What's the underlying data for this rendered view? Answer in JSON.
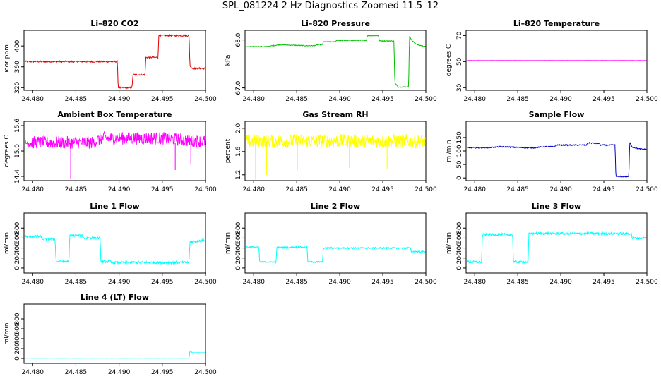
{
  "title": "SPL_081224  2 Hz Diagnostics Zoomed 11.5–12",
  "colors": {
    "red": "#e00000",
    "green": "#00c000",
    "magenta": "#ff00ff",
    "yellow": "#ffff00",
    "blue": "#0000cc",
    "cyan": "#00ffff"
  },
  "chart_data": [
    {
      "type": "line",
      "title": "Li–820 CO2",
      "ylabel": "Licor ppm",
      "color": "red",
      "xlim": [
        24.479,
        24.5
      ],
      "xticks": [
        "24.480",
        "24.485",
        "24.490",
        "24.495",
        "24.500"
      ],
      "ylim": [
        315,
        430
      ],
      "yticks": [
        320,
        360,
        400
      ],
      "noise": 1.5,
      "series": {
        "x": [
          24.4791,
          24.4898,
          24.4899,
          24.4915,
          24.4916,
          24.493,
          24.4931,
          24.4945,
          24.4946,
          24.4981,
          24.4982,
          24.4985,
          24.49996
        ],
        "y": [
          370,
          370,
          320,
          320,
          345,
          345,
          378,
          378,
          420,
          420,
          362,
          357,
          357
        ]
      }
    },
    {
      "type": "line",
      "title": "Li–820 Pressure",
      "ylabel": "kPa",
      "color": "green",
      "xlim": [
        24.479,
        24.5
      ],
      "xticks": [
        "24.480",
        "24.485",
        "24.490",
        "24.495",
        "24.500"
      ],
      "ylim": [
        66.95,
        68.2
      ],
      "yticks": [
        "67.0",
        "68.0"
      ],
      "noise": 0.008,
      "series": {
        "x": [
          24.4791,
          24.4815,
          24.483,
          24.486,
          24.487,
          24.4875,
          24.488,
          24.4881,
          24.4895,
          24.4896,
          24.4931,
          24.4932,
          24.4945,
          24.4946,
          24.4963,
          24.4964,
          24.4968,
          24.4969,
          24.498,
          24.4981,
          24.4984,
          24.499,
          24.49996
        ],
        "y": [
          67.86,
          67.86,
          67.9,
          67.88,
          67.88,
          67.9,
          67.9,
          67.96,
          67.96,
          67.99,
          67.99,
          68.09,
          68.09,
          67.98,
          67.98,
          67.1,
          67.02,
          67.02,
          67.02,
          68.08,
          67.98,
          67.9,
          67.86
        ]
      }
    },
    {
      "type": "line",
      "title": "Li–820 Temperature",
      "ylabel": "degrees C",
      "color": "magenta",
      "xlim": [
        24.479,
        24.5
      ],
      "xticks": [
        "24.480",
        "24.485",
        "24.490",
        "24.495",
        "24.500"
      ],
      "ylim": [
        28,
        74
      ],
      "yticks": [
        30,
        50,
        70
      ],
      "noise": 0.05,
      "series": {
        "x": [
          24.4791,
          24.49996
        ],
        "y": [
          50.8,
          50.8
        ]
      }
    },
    {
      "type": "line",
      "title": "Ambient Box Temperature",
      "ylabel": "degrees C",
      "color": "magenta",
      "xlim": [
        24.479,
        24.5
      ],
      "xticks": [
        "24.480",
        "24.485",
        "24.490",
        "24.495",
        "24.500"
      ],
      "ylim": [
        14.3,
        15.7
      ],
      "yticks": [
        "14.4",
        "15.0",
        "15.6"
      ],
      "noise": 0.15,
      "spikes": [
        [
          24.4844,
          14.35
        ],
        [
          24.4965,
          14.55
        ],
        [
          24.4983,
          14.7
        ]
      ],
      "series": {
        "x": [
          24.4791,
          24.487,
          24.488,
          24.495,
          24.49996
        ],
        "y": [
          15.2,
          15.2,
          15.3,
          15.3,
          15.22
        ]
      }
    },
    {
      "type": "line",
      "title": "Gas Stream RH",
      "ylabel": "percent",
      "color": "yellow",
      "xlim": [
        24.479,
        24.5
      ],
      "xticks": [
        "24.480",
        "24.485",
        "24.490",
        "24.495",
        "24.500"
      ],
      "ylim": [
        1.1,
        2.12
      ],
      "yticks": [
        "1.2",
        "1.6",
        "2.0"
      ],
      "noise": 0.12,
      "spikes": [
        [
          24.4802,
          1.12
        ],
        [
          24.4815,
          1.2
        ],
        [
          24.4851,
          1.28
        ],
        [
          24.4911,
          1.32
        ],
        [
          24.4955,
          1.3
        ]
      ],
      "series": {
        "x": [
          24.4791,
          24.49996
        ],
        "y": [
          1.78,
          1.78
        ]
      }
    },
    {
      "type": "line",
      "title": "Sample Flow",
      "ylabel": "ml/min",
      "color": "blue",
      "xlim": [
        24.479,
        24.5
      ],
      "xticks": [
        "24.480",
        "24.485",
        "24.490",
        "24.495",
        "24.500"
      ],
      "ylim": [
        -10,
        210
      ],
      "yticks": [
        0,
        50,
        100,
        150
      ],
      "noise": 2,
      "series": {
        "x": [
          24.4791,
          24.4815,
          24.483,
          24.486,
          24.487,
          24.488,
          24.4881,
          24.4893,
          24.4894,
          24.493,
          24.4931,
          24.4945,
          24.4946,
          24.4963,
          24.4964,
          24.4979,
          24.498,
          24.4983,
          24.499,
          24.49996
        ],
        "y": [
          112,
          112,
          116,
          112,
          112,
          116,
          116,
          116,
          122,
          122,
          130,
          128,
          122,
          122,
          5,
          5,
          132,
          115,
          108,
          106
        ]
      }
    },
    {
      "type": "line",
      "title": "Line 1 Flow",
      "ylabel": "ml/min",
      "color": "cyan",
      "xlim": [
        24.479,
        24.5
      ],
      "xticks": [
        "24.480",
        "24.485",
        "24.490",
        "24.495",
        "24.500"
      ],
      "ylim": [
        -100,
        1100
      ],
      "yticks": [
        0,
        200,
        400,
        600,
        800
      ],
      "noise": 25,
      "series": {
        "x": [
          24.4791,
          24.481,
          24.4811,
          24.4826,
          24.4827,
          24.4842,
          24.4843,
          24.4858,
          24.4859,
          24.4878,
          24.4879,
          24.489,
          24.4891,
          24.4981,
          24.4982,
          24.49996
        ],
        "y": [
          630,
          630,
          580,
          580,
          130,
          130,
          650,
          650,
          600,
          600,
          130,
          130,
          110,
          110,
          520,
          560
        ]
      }
    },
    {
      "type": "line",
      "title": "Line 2 Flow",
      "ylabel": "ml/min",
      "color": "cyan",
      "xlim": [
        24.479,
        24.5
      ],
      "xticks": [
        "24.480",
        "24.485",
        "24.490",
        "24.495",
        "24.500"
      ],
      "ylim": [
        -100,
        1100
      ],
      "yticks": [
        0,
        200,
        400,
        600,
        800
      ],
      "noise": 15,
      "series": {
        "x": [
          24.4791,
          24.4806,
          24.4807,
          24.4826,
          24.4827,
          24.4845,
          24.4846,
          24.4862,
          24.4863,
          24.488,
          24.4881,
          24.4982,
          24.4983,
          24.49996
        ],
        "y": [
          420,
          420,
          120,
          120,
          410,
          410,
          420,
          420,
          120,
          120,
          400,
          400,
          330,
          330
        ]
      }
    },
    {
      "type": "line",
      "title": "Line 3 Flow",
      "ylabel": "ml/min",
      "color": "cyan",
      "xlim": [
        24.479,
        24.5
      ],
      "xticks": [
        "24.480",
        "24.485",
        "24.490",
        "24.495",
        "24.500"
      ],
      "ylim": [
        -100,
        1100
      ],
      "yticks": [
        0,
        200,
        400,
        600,
        800
      ],
      "noise": 25,
      "series": {
        "x": [
          24.4791,
          24.4808,
          24.4809,
          24.4844,
          24.4845,
          24.4862,
          24.4863,
          24.4982,
          24.4983,
          24.49996
        ],
        "y": [
          120,
          120,
          670,
          670,
          120,
          120,
          690,
          690,
          600,
          600
        ]
      }
    },
    {
      "type": "line",
      "title": "Line 4 (LT) Flow",
      "ylabel": "ml/min",
      "color": "cyan",
      "xlim": [
        24.479,
        24.5
      ],
      "xticks": [
        "24.480",
        "24.485",
        "24.490",
        "24.495",
        "24.500"
      ],
      "ylim": [
        -100,
        1100
      ],
      "yticks": [
        0,
        200,
        400,
        600,
        800
      ],
      "noise": 2,
      "series": {
        "x": [
          24.4791,
          24.4981,
          24.4982,
          24.4985,
          24.49996
        ],
        "y": [
          5,
          5,
          150,
          115,
          115
        ]
      }
    }
  ]
}
